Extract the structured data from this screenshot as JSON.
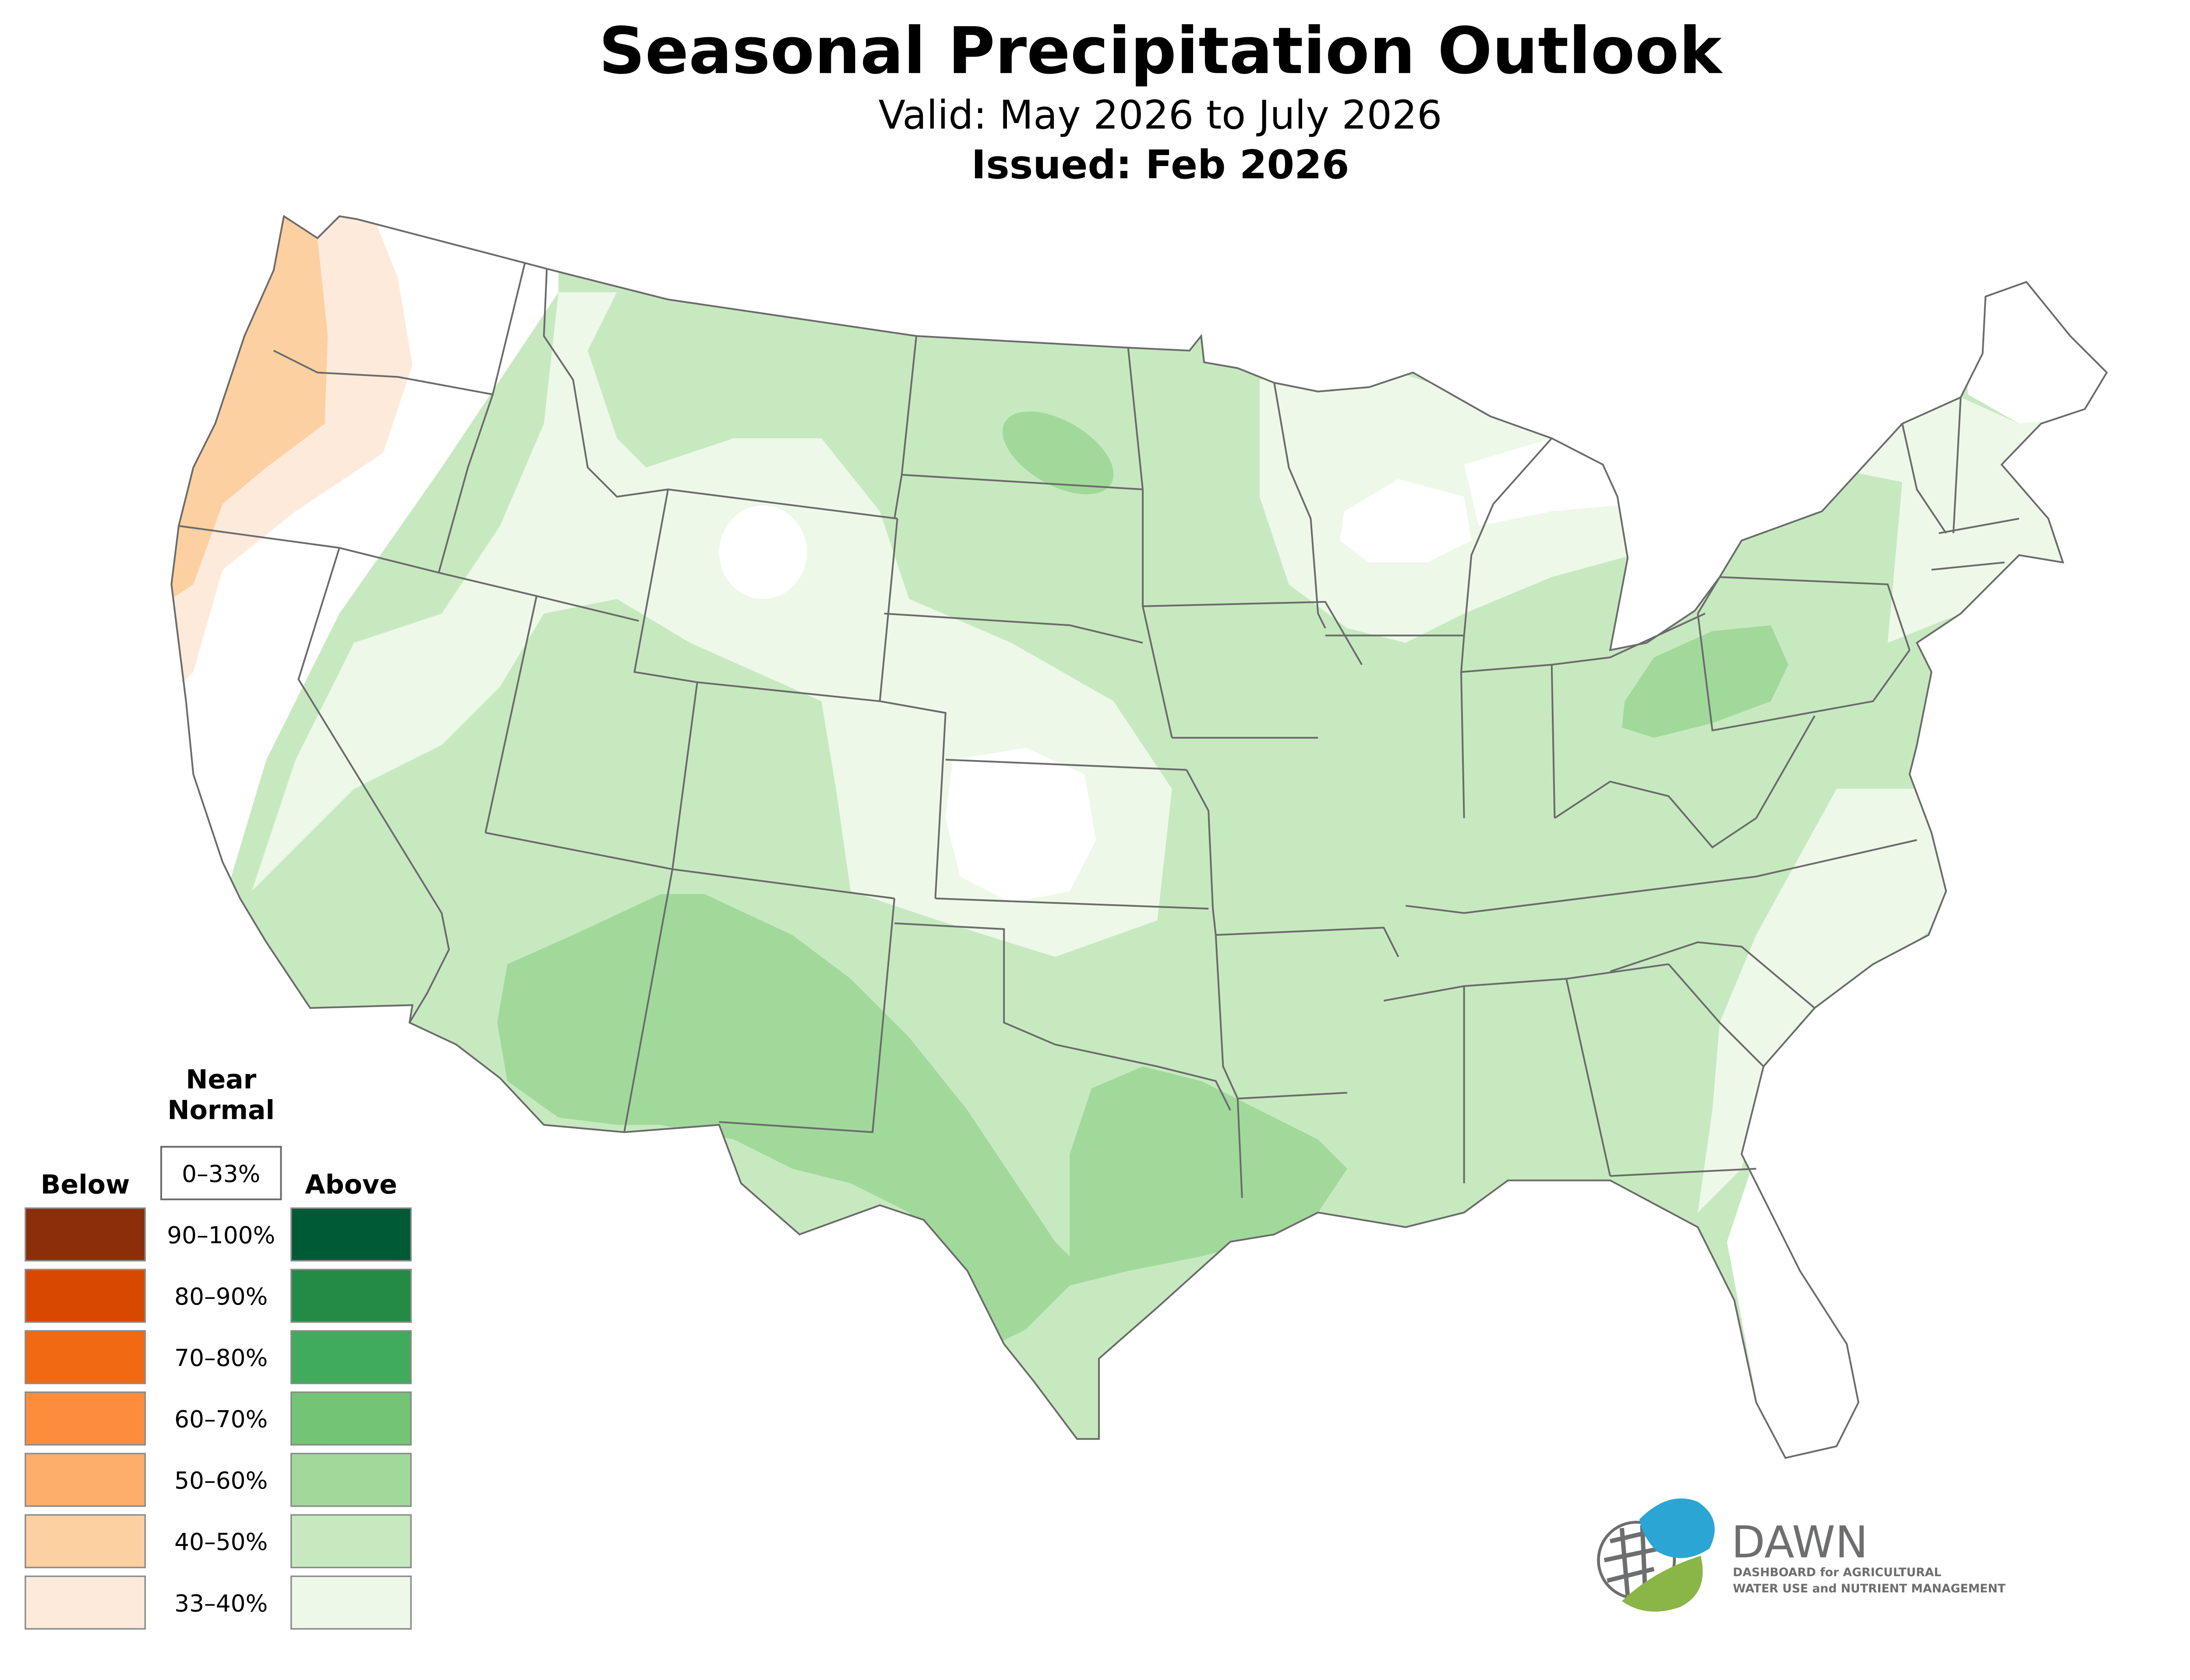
{
  "header": {
    "title": "Seasonal Precipitation Outlook",
    "valid": "Valid: May 2026 to July 2026",
    "issued": "Issued: Feb 2026"
  },
  "legend": {
    "near_normal_title_line1": "Near",
    "near_normal_title_line2": "Normal",
    "near_normal_range": "0–33%",
    "below_title": "Below",
    "above_title": "Above",
    "rows": [
      {
        "label": "90–100%",
        "below_color": "#8b2e0a",
        "above_color": "#005a35"
      },
      {
        "label": "80–90%",
        "below_color": "#d94801",
        "above_color": "#238b45"
      },
      {
        "label": "70–80%",
        "below_color": "#f16913",
        "above_color": "#41ab5d"
      },
      {
        "label": "60–70%",
        "below_color": "#fd8d3c",
        "above_color": "#74c476"
      },
      {
        "label": "50–60%",
        "below_color": "#fdae6b",
        "above_color": "#a1d99b"
      },
      {
        "label": "40–50%",
        "below_color": "#fdd0a2",
        "above_color": "#c7e9c0"
      },
      {
        "label": "33–40%",
        "below_color": "#feeadb",
        "above_color": "#edf8e9"
      }
    ]
  },
  "logo": {
    "name": "DAWN",
    "line1": "DASHBOARD for AGRICULTURAL",
    "line2": "WATER USE and NUTRIENT MANAGEMENT",
    "blue": "#2ba6d4",
    "green": "#8ab547",
    "gray": "#6d6e70"
  },
  "map": {
    "outline_color": "#6b6b6b",
    "category_colors": {
      "above_33_40": "#edf8e9",
      "above_40_50": "#c7e9c0",
      "above_50_60": "#a1d99b",
      "below_33_40": "#feeadb",
      "below_40_50": "#fdd0a2"
    }
  }
}
